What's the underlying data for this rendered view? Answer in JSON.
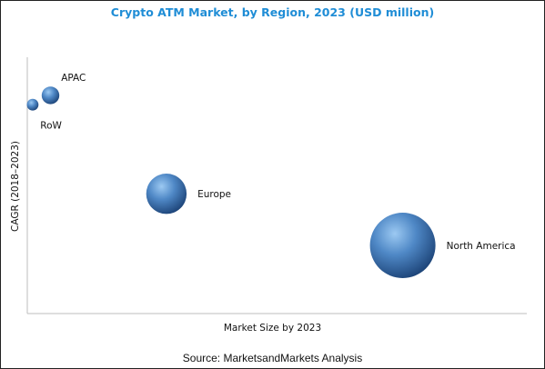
{
  "chart_data": {
    "type": "scatter",
    "title": "Crypto ATM Market, by Region, 2023 (USD million)",
    "xlabel": "Market Size by 2023",
    "ylabel": "CAGR (2018–2023)",
    "xlim": [
      0,
      100
    ],
    "ylim": [
      0,
      100
    ],
    "grid": false,
    "legend": "none",
    "points": [
      {
        "label": "APAC",
        "x": 5,
        "y": 83,
        "size": 1.8,
        "label_pos": "above-right"
      },
      {
        "label": "RoW",
        "x": 1,
        "y": 79,
        "size": 0.8,
        "label_pos": "below-right"
      },
      {
        "label": "Europe",
        "x": 31,
        "y": 41,
        "size": 9.5,
        "label_pos": "right"
      },
      {
        "label": "North America",
        "x": 84,
        "y": 19,
        "size": 25,
        "label_pos": "right"
      }
    ],
    "colors": {
      "bubble_light": "#9cc9f2",
      "bubble_mid": "#4f88c6",
      "bubble_dark": "#1c4377",
      "title": "#1f8dd6"
    }
  },
  "source": "Source: MarketsandMarkets Analysis"
}
